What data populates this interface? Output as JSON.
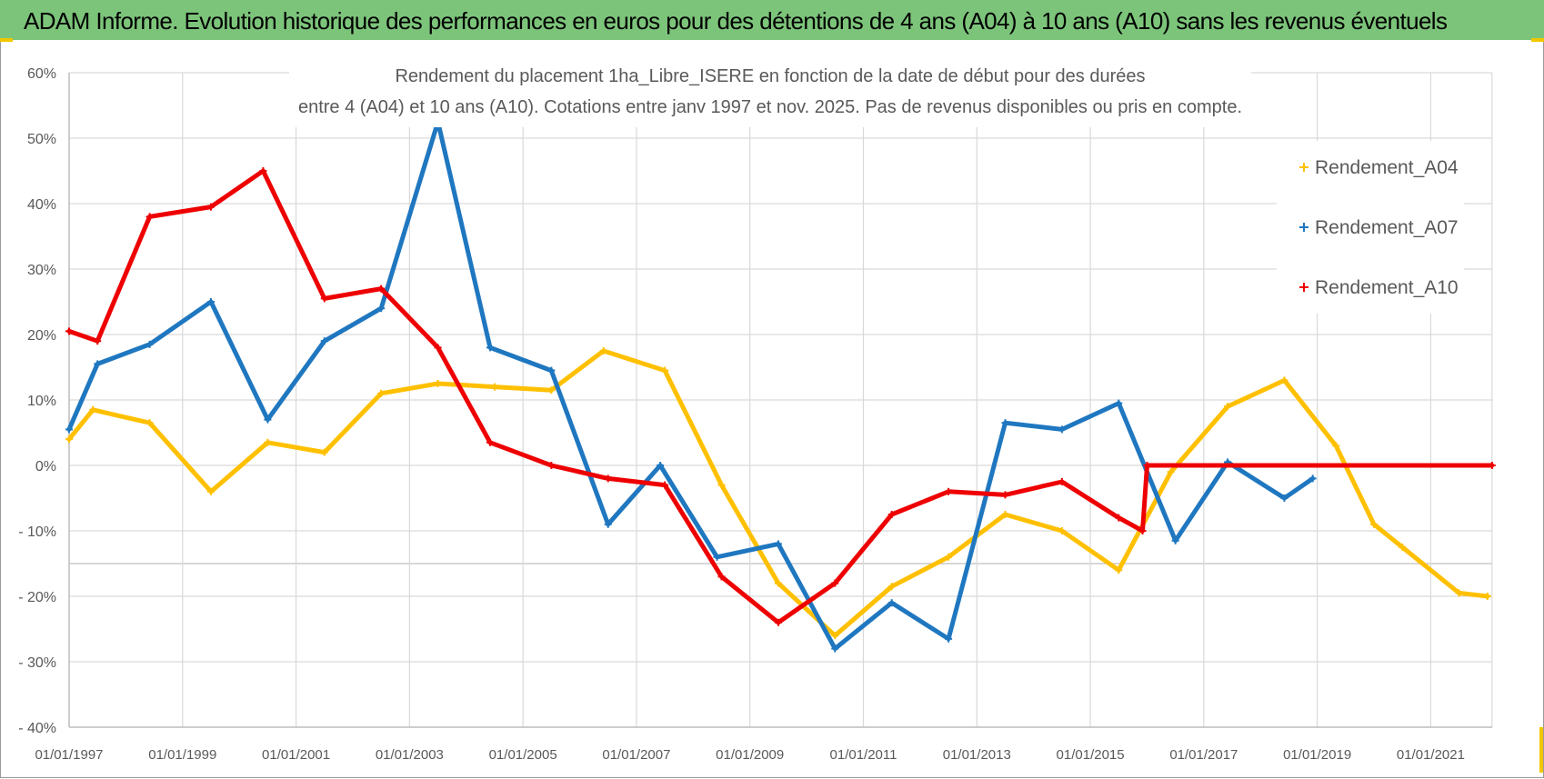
{
  "header": {
    "title": "ADAM Informe. Evolution historique des performances en euros pour des détentions de 4 ans (A04) à 10 ans (A10) sans les revenus éventuels"
  },
  "colors": {
    "header_bg": "#7cc47a",
    "A04": "#ffc000",
    "A07": "#1f77c0",
    "A10": "#ee0000",
    "grid": "#d9d9d9"
  },
  "chart_data": {
    "type": "line",
    "title_lines": [
      "Rendement du placement 1ha_Libre_ISERE en fonction de la date de début pour des durées",
      "entre 4 (A04) et 10 ans (A10). Cotations entre janv 1997 et nov. 2025. Pas de revenus disponibles ou pris en compte."
    ],
    "xlabel": "",
    "ylabel": "",
    "xlim": [
      1997.0,
      2022.083
    ],
    "ylim": [
      -40,
      60
    ],
    "y_ticks": [
      60,
      50,
      40,
      30,
      20,
      10,
      0,
      -10,
      -20,
      -30,
      -40
    ],
    "y_tick_labels": [
      "60%",
      "50%",
      "40%",
      "30%",
      "20%",
      "10%",
      "0%",
      "- 10%",
      "- 20%",
      "- 30%",
      "- 40%"
    ],
    "x_ticks": [
      1997,
      1999,
      2001,
      2003,
      2005,
      2007,
      2009,
      2011,
      2013,
      2015,
      2017,
      2019,
      2021
    ],
    "x_tick_labels": [
      "01/01/1997",
      "01/01/1999",
      "01/01/2001",
      "01/01/2003",
      "01/01/2005",
      "01/01/2007",
      "01/01/2009",
      "01/01/2011",
      "01/01/2013",
      "01/01/2015",
      "01/01/2017",
      "01/01/2019",
      "01/01/2021"
    ],
    "x_gridlines": [
      1997,
      1999,
      2001,
      2003,
      2005,
      2007,
      2009,
      2011,
      2013,
      2015,
      2017,
      2019,
      2021,
      2022.08
    ],
    "y_gridlines": [
      60,
      50,
      40,
      30,
      20,
      10,
      0,
      -10,
      -15,
      -20,
      -30,
      -40
    ],
    "grid": true,
    "legend_position": "top-right",
    "series": [
      {
        "name": "Rendement_A04",
        "color": "#ffc000",
        "x": [
          1997.0,
          1997.42,
          1998.42,
          1999.5,
          2000.5,
          2001.5,
          2002.5,
          2003.5,
          2004.5,
          2005.5,
          2006.42,
          2007.5,
          2008.5,
          2009.5,
          2010.5,
          2011.5,
          2012.5,
          2013.5,
          2014.5,
          2015.5,
          2016.42,
          2017.42,
          2018.42,
          2019.33,
          2020.0,
          2020.5,
          2021.5,
          2022.0
        ],
        "y": [
          4,
          8.5,
          6.5,
          -4,
          3.5,
          2,
          11,
          12.5,
          12,
          11.5,
          17.5,
          14.5,
          -3,
          -18,
          -26,
          -18.5,
          -14,
          -7.5,
          -10,
          -16,
          -1,
          9,
          13,
          3,
          -9,
          -12.5,
          -19.5,
          -20
        ]
      },
      {
        "name": "Rendement_A07",
        "color": "#1f77c0",
        "x": [
          1997.0,
          1997.5,
          1998.42,
          1999.5,
          2000.5,
          2001.5,
          2002.5,
          2003.5,
          2004.42,
          2005.5,
          2006.5,
          2007.42,
          2008.42,
          2009.5,
          2010.5,
          2011.5,
          2012.5,
          2013.5,
          2014.5,
          2015.5,
          2016.5,
          2017.42,
          2018.42,
          2018.92
        ],
        "y": [
          5.5,
          15.5,
          18.5,
          25,
          7,
          19,
          24,
          52.5,
          18,
          14.5,
          -9,
          0,
          -14,
          -12,
          -28,
          -21,
          -26.5,
          6.5,
          5.5,
          9.5,
          -11.5,
          0.5,
          -5,
          -2
        ]
      },
      {
        "name": "Rendement_A10",
        "color": "#ee0000",
        "x": [
          1997.0,
          1997.5,
          1998.42,
          1999.5,
          2000.42,
          2001.5,
          2002.5,
          2003.5,
          2004.42,
          2005.5,
          2006.5,
          2007.5,
          2008.5,
          2009.5,
          2010.5,
          2011.5,
          2012.5,
          2013.5,
          2014.5,
          2015.5,
          2015.92,
          2016.0,
          2022.08
        ],
        "y": [
          20.5,
          19,
          38,
          39.5,
          45,
          25.5,
          27,
          18,
          3.5,
          0,
          -2,
          -3,
          -17,
          -24,
          -18,
          -7.5,
          -4,
          -4.5,
          -2.5,
          -8,
          -10,
          0,
          0
        ]
      }
    ]
  }
}
